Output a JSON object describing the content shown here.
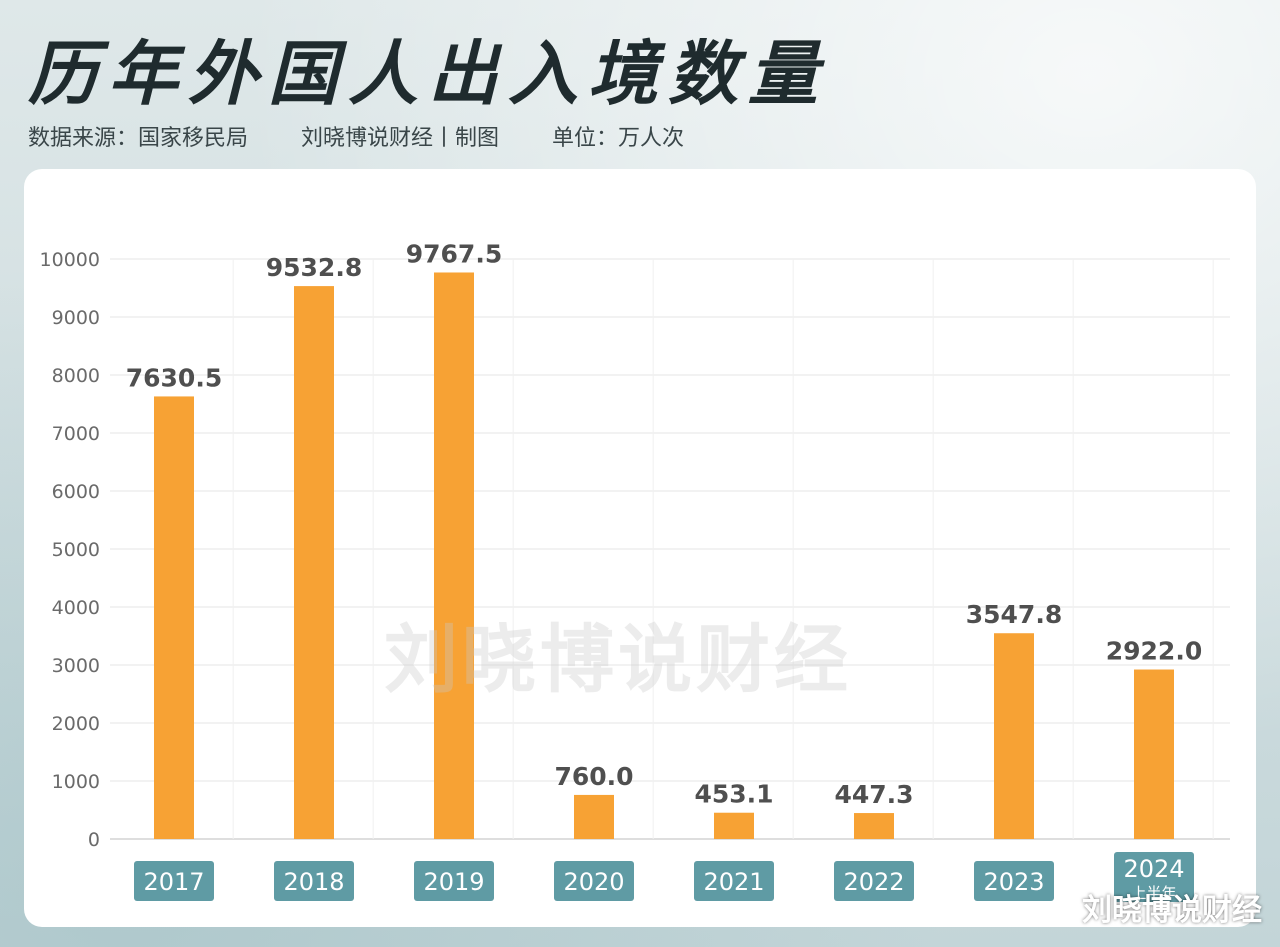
{
  "header": {
    "title": "历年外国人出入境数量",
    "source": "数据来源：国家移民局",
    "credit": "刘晓博说财经丨制图",
    "unit": "单位：万人次"
  },
  "watermark": "刘晓博说财经",
  "corner_watermark": "刘晓博说财经",
  "chart_data": {
    "type": "bar",
    "categories": [
      "2017",
      "2018",
      "2019",
      "2020",
      "2021",
      "2022",
      "2023",
      "2024"
    ],
    "category_sublabels": [
      "",
      "",
      "",
      "",
      "",
      "",
      "",
      "上半年"
    ],
    "values": [
      7630.5,
      9532.8,
      9767.5,
      760.0,
      453.1,
      447.3,
      3547.8,
      2922.0
    ],
    "value_labels": [
      "7630.5",
      "9532.8",
      "9767.5",
      "760.0",
      "453.1",
      "447.3",
      "3547.8",
      "2922.0"
    ],
    "yticks": [
      "0",
      "1000",
      "2000",
      "3000",
      "4000",
      "5000",
      "6000",
      "7000",
      "8000",
      "9000",
      "10000"
    ],
    "ylim": [
      0,
      10000
    ],
    "title": "历年外国人出入境数量",
    "xlabel": "",
    "ylabel": "",
    "grid": true,
    "colors": {
      "bar": "#f7a234",
      "category_badge": "#5f9ba4",
      "category_text": "#ffffff",
      "value_label": "#4f4f4f",
      "tick_label": "#6a6a6a",
      "grid": "#e6e6e6"
    }
  }
}
